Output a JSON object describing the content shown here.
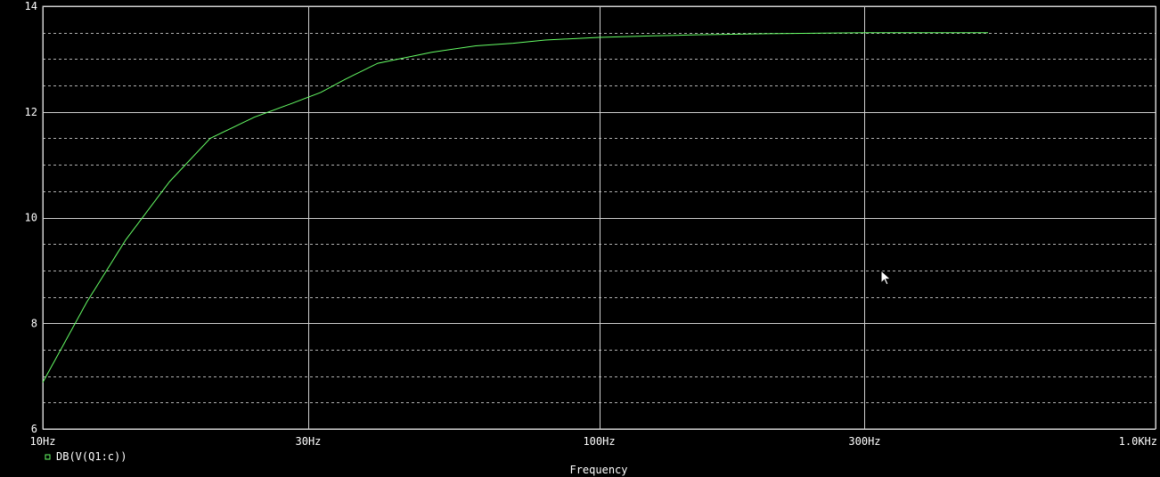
{
  "chart_data": {
    "type": "line",
    "x_scale": "log",
    "xlim": [
      10,
      1000
    ],
    "ylim": [
      6,
      14
    ],
    "x_ticks": [
      {
        "value": 10,
        "label": "10Hz"
      },
      {
        "value": 30,
        "label": "30Hz"
      },
      {
        "value": 100,
        "label": "100Hz"
      },
      {
        "value": 300,
        "label": "300Hz"
      },
      {
        "value": 1000,
        "label": "1.0KHz"
      }
    ],
    "y_ticks": [
      {
        "value": 6,
        "label": "6"
      },
      {
        "value": 8,
        "label": "8"
      },
      {
        "value": 10,
        "label": "10"
      },
      {
        "value": 12,
        "label": "12"
      },
      {
        "value": 14,
        "label": "14"
      }
    ],
    "y_minor_grid": [
      6.5,
      7,
      7.5,
      8.5,
      9,
      9.5,
      10.5,
      11,
      11.5,
      12.5,
      13,
      13.5
    ],
    "grid": true,
    "xlabel": "Frequency",
    "legend_position": "bottom-left",
    "colors": {
      "background": "#000000",
      "grid_major": "#d0d0d0",
      "grid_minor": "#b0b0b0",
      "text": "#ffffff"
    },
    "series": [
      {
        "name": "DB(V(Q1:c))",
        "color": "#66ff66",
        "x": [
          10,
          12,
          14.1,
          16.9,
          20,
          24,
          28,
          31.6,
          35,
          40,
          50,
          60,
          70,
          80,
          100,
          125,
          150,
          200,
          250,
          300,
          400,
          500
        ],
        "y": [
          6.88,
          8.4,
          9.58,
          10.68,
          11.5,
          11.9,
          12.16,
          12.37,
          12.62,
          12.92,
          13.13,
          13.25,
          13.3,
          13.36,
          13.41,
          13.44,
          13.46,
          13.48,
          13.49,
          13.5,
          13.5,
          13.5
        ]
      }
    ]
  },
  "cursor": {
    "icon": "mouse-pointer-icon"
  }
}
